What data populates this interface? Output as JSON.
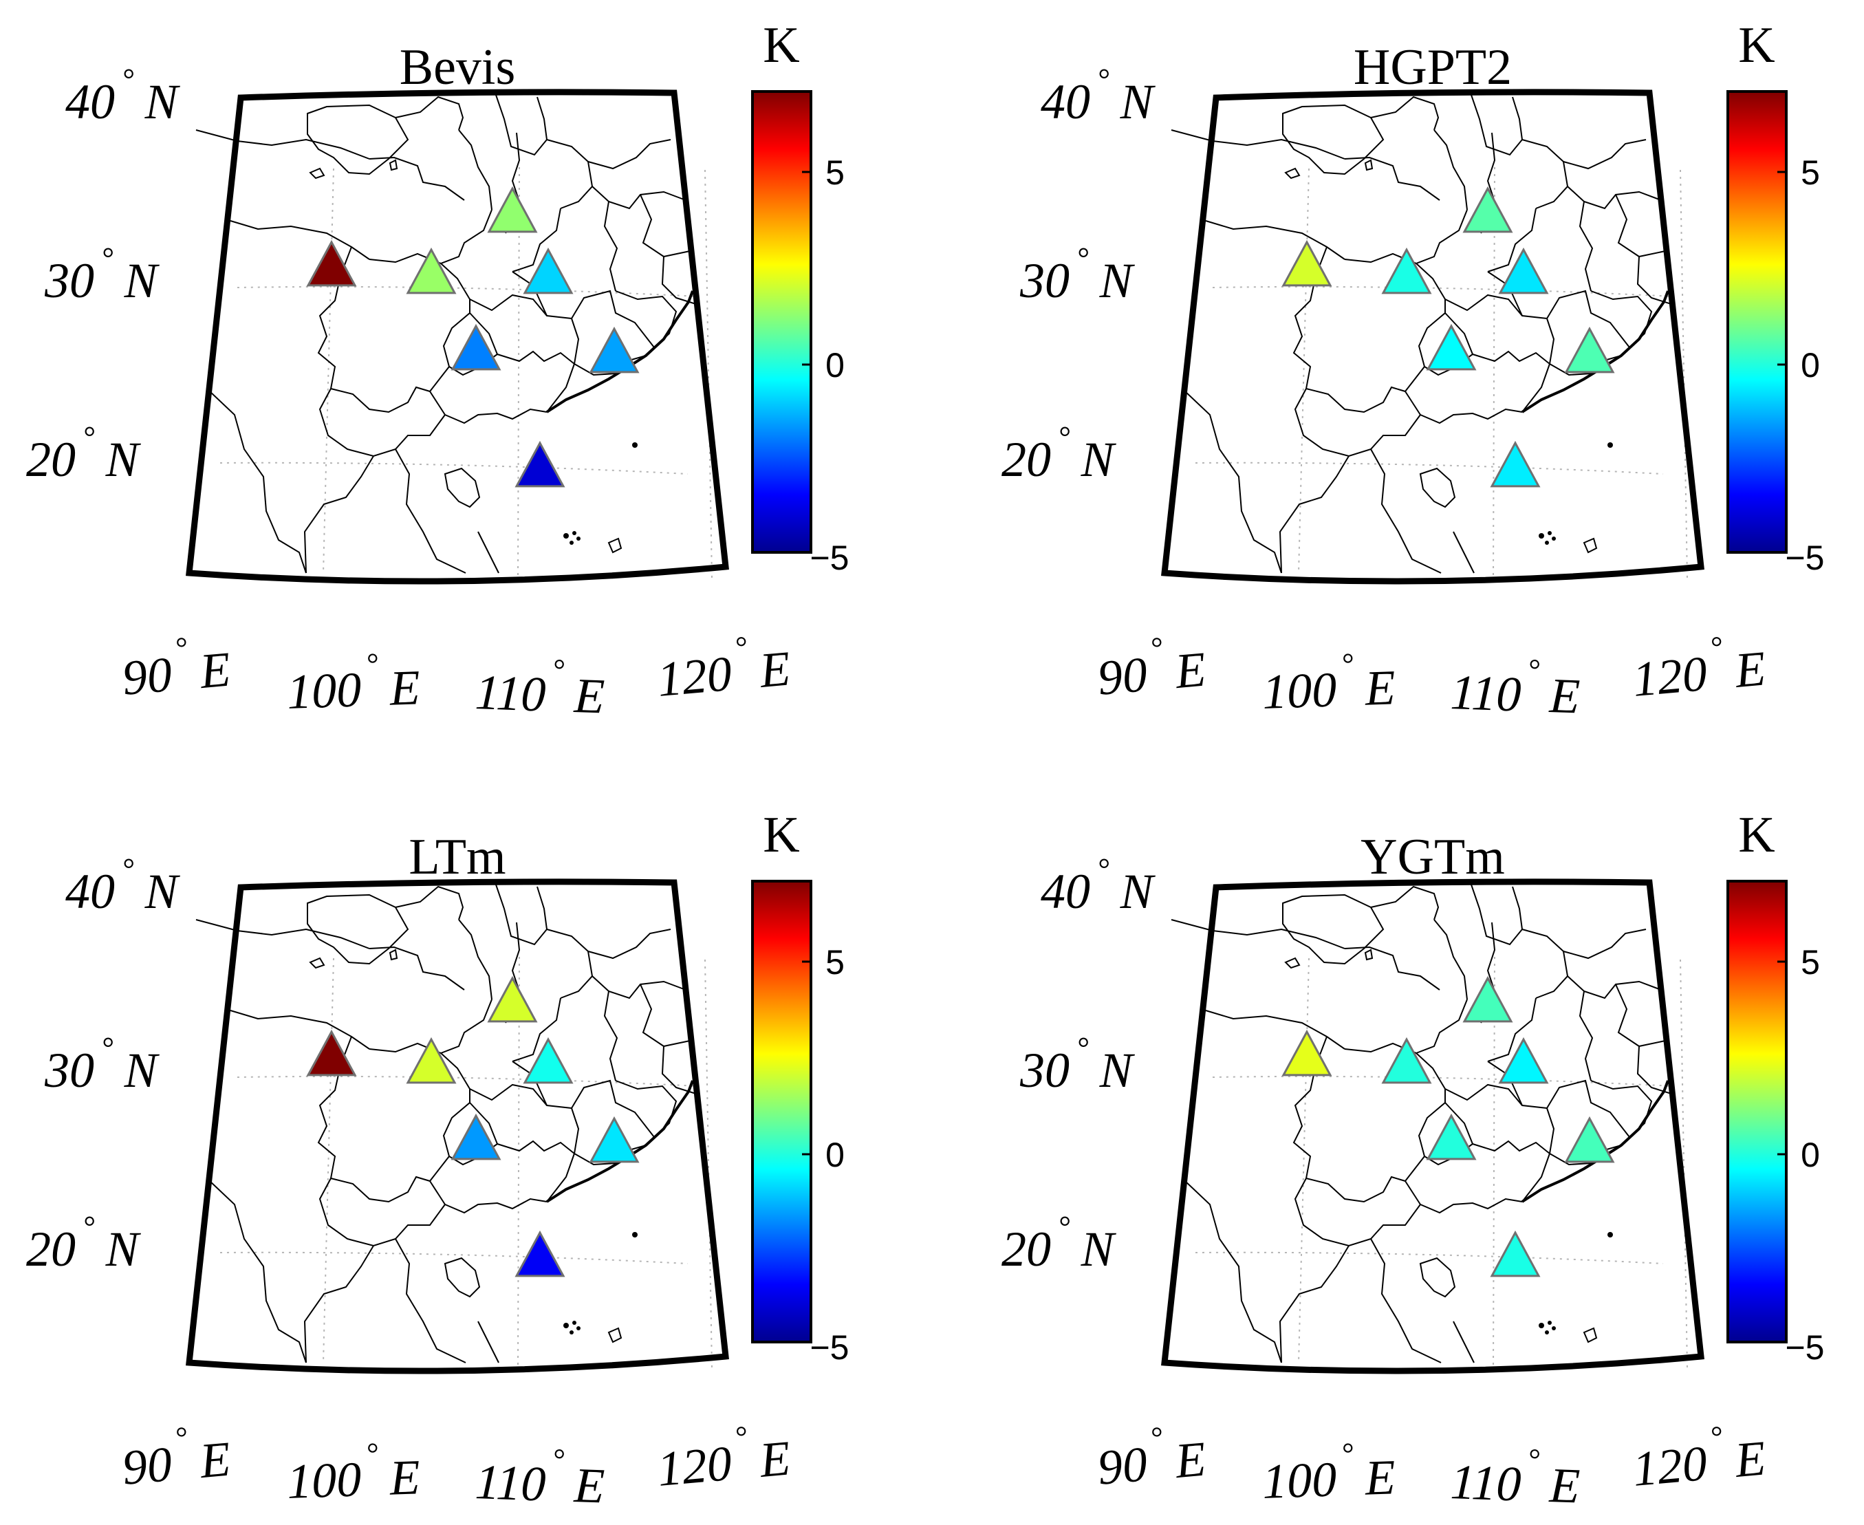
{
  "figure": {
    "colorbar": {
      "unit": "K",
      "min": -5,
      "max": 7,
      "ticks": [
        "5",
        "0",
        "−5"
      ],
      "tick_values": [
        5,
        0,
        -5
      ],
      "colormap": "jet"
    },
    "axes": {
      "lat_labels": [
        {
          "deg": "40",
          "hemi": "N"
        },
        {
          "deg": "30",
          "hemi": "N"
        },
        {
          "deg": "20",
          "hemi": "N"
        }
      ],
      "lon_labels": [
        {
          "deg": "90",
          "hemi": "E"
        },
        {
          "deg": "100",
          "hemi": "E"
        },
        {
          "deg": "110",
          "hemi": "E"
        },
        {
          "deg": "120",
          "hemi": "E"
        }
      ],
      "degree_symbol": "°"
    },
    "panels": [
      {
        "title": "Bevis",
        "station_bias_K": [
          1.2,
          7.0,
          1.3,
          -1.0,
          -2.0,
          -1.6,
          -4.0
        ]
      },
      {
        "title": "HGPT2",
        "station_bias_K": [
          0.5,
          2.0,
          -0.2,
          -0.8,
          -0.5,
          0.4,
          -0.7
        ]
      },
      {
        "title": "LTm",
        "station_bias_K": [
          2.0,
          7.5,
          2.0,
          -0.3,
          -1.7,
          -0.8,
          -3.6
        ]
      },
      {
        "title": "YGTm",
        "station_bias_K": [
          0.3,
          2.2,
          -0.1,
          -0.6,
          -0.1,
          0.3,
          -0.2
        ]
      }
    ]
  }
}
